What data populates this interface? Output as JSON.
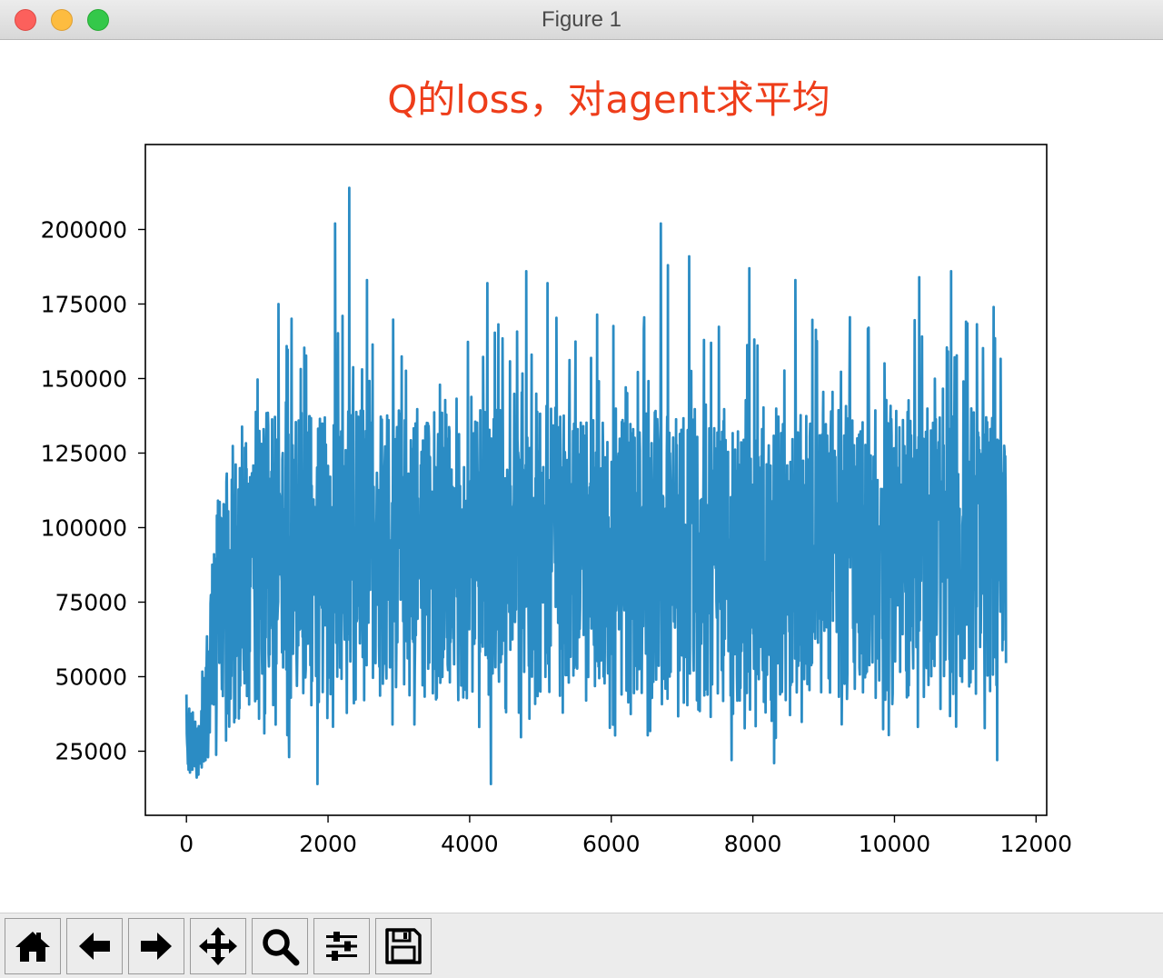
{
  "window": {
    "title": "Figure 1"
  },
  "toolbar": {
    "buttons": [
      {
        "name": "home-button",
        "icon": "home-icon"
      },
      {
        "name": "back-button",
        "icon": "arrow-left-icon"
      },
      {
        "name": "forward-button",
        "icon": "arrow-right-icon"
      },
      {
        "name": "pan-button",
        "icon": "move-icon"
      },
      {
        "name": "zoom-button",
        "icon": "magnifier-icon"
      },
      {
        "name": "configure-subplots-button",
        "icon": "sliders-icon"
      },
      {
        "name": "save-button",
        "icon": "floppy-disk-icon"
      }
    ]
  },
  "chart_data": {
    "type": "line",
    "title": "Q的loss，对agent求平均",
    "title_color": "#ee3d1a",
    "line_color": "#2b8cc4",
    "xlabel": "",
    "ylabel": "",
    "xlim": [
      -580,
      12150
    ],
    "ylim": [
      3500,
      228500
    ],
    "xticks": [
      0,
      2000,
      4000,
      6000,
      8000,
      10000,
      12000
    ],
    "yticks": [
      25000,
      50000,
      75000,
      100000,
      125000,
      150000,
      175000,
      200000
    ],
    "grid": false,
    "legend": "none",
    "n_points": 11580,
    "x_start": 0,
    "x_end": 11579,
    "bands": [
      {
        "x": [
          0,
          150,
          300,
          450,
          600,
          800,
          1000,
          11400,
          11580
        ],
        "low": [
          14000,
          16000,
          20000,
          24000,
          30000,
          36000,
          40000,
          42000,
          42000
        ],
        "high": [
          44000,
          35000,
          70000,
          112000,
          130000,
          135000,
          140000,
          140000,
          128000
        ]
      }
    ],
    "peaks": [
      {
        "x": 2100,
        "y": 202000
      },
      {
        "x": 2300,
        "y": 214000
      },
      {
        "x": 2550,
        "y": 183000
      },
      {
        "x": 4250,
        "y": 182000
      },
      {
        "x": 4800,
        "y": 186000
      },
      {
        "x": 5100,
        "y": 182000
      },
      {
        "x": 6700,
        "y": 202000
      },
      {
        "x": 6800,
        "y": 188000
      },
      {
        "x": 7100,
        "y": 191000
      },
      {
        "x": 7950,
        "y": 187000
      },
      {
        "x": 8600,
        "y": 183000
      },
      {
        "x": 10350,
        "y": 184000
      },
      {
        "x": 10800,
        "y": 186000
      },
      {
        "x": 11400,
        "y": 174000
      },
      {
        "x": 1300,
        "y": 175000
      },
      {
        "x": 1450,
        "y": 23000
      },
      {
        "x": 1850,
        "y": 14000
      },
      {
        "x": 4300,
        "y": 14000
      },
      {
        "x": 11450,
        "y": 22000
      },
      {
        "x": 7700,
        "y": 22000
      },
      {
        "x": 8300,
        "y": 21000
      }
    ]
  }
}
